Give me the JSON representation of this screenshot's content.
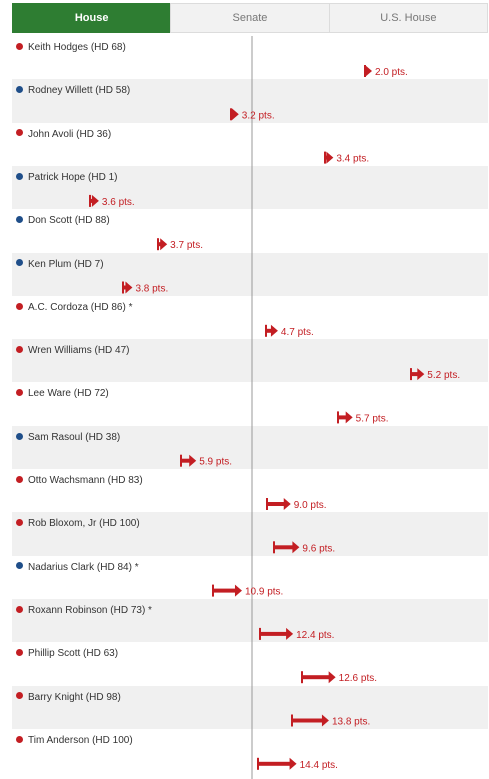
{
  "tabs": [
    {
      "label": "House",
      "active": true
    },
    {
      "label": "Senate",
      "active": false
    },
    {
      "label": "U.S. House",
      "active": false
    }
  ],
  "colors": {
    "republican": "#c31e23",
    "democrat": "#1f4e89",
    "arrow": "#c31e23",
    "tab_active": "#2e7d32"
  },
  "chart_data": {
    "type": "arrow",
    "shift_direction": "right",
    "unit": "pts.",
    "rows": [
      {
        "name": "Keith Hodges (HD 68)",
        "party": "R",
        "shift": 2.0,
        "value_label": "2.0 pts."
      },
      {
        "name": "Rodney Willett (HD 58)",
        "party": "D",
        "shift": 3.2,
        "value_label": "3.2 pts."
      },
      {
        "name": "John Avoli (HD 36)",
        "party": "R",
        "shift": 3.4,
        "value_label": "3.4 pts."
      },
      {
        "name": "Patrick Hope (HD 1)",
        "party": "D",
        "shift": 3.6,
        "value_label": "3.6 pts."
      },
      {
        "name": "Don Scott (HD 88)",
        "party": "D",
        "shift": 3.7,
        "value_label": "3.7 pts."
      },
      {
        "name": "Ken Plum (HD 7)",
        "party": "D",
        "shift": 3.8,
        "value_label": "3.8 pts."
      },
      {
        "name": "A.C. Cordoza (HD 86) *",
        "party": "R",
        "shift": 4.7,
        "value_label": "4.7 pts."
      },
      {
        "name": "Wren Williams (HD 47)",
        "party": "R",
        "shift": 5.2,
        "value_label": "5.2 pts."
      },
      {
        "name": "Lee Ware (HD 72)",
        "party": "R",
        "shift": 5.7,
        "value_label": "5.7 pts."
      },
      {
        "name": "Sam Rasoul (HD 38)",
        "party": "D",
        "shift": 5.9,
        "value_label": "5.9 pts."
      },
      {
        "name": "Otto Wachsmann (HD 83)",
        "party": "R",
        "shift": 9.0,
        "value_label": "9.0 pts."
      },
      {
        "name": "Rob Bloxom, Jr (HD 100)",
        "party": "R",
        "shift": 9.6,
        "value_label": "9.6 pts."
      },
      {
        "name": "Nadarius Clark (HD 84) *",
        "party": "D",
        "shift": 10.9,
        "value_label": "10.9 pts."
      },
      {
        "name": "Roxann Robinson (HD 73) *",
        "party": "R",
        "shift": 12.4,
        "value_label": "12.4 pts."
      },
      {
        "name": "Phillip Scott (HD 63)",
        "party": "R",
        "shift": 12.6,
        "value_label": "12.6 pts."
      },
      {
        "name": "Barry Knight (HD 98)",
        "party": "R",
        "shift": 13.8,
        "value_label": "13.8 pts."
      },
      {
        "name": "Tim Anderson (HD 100)",
        "party": "R",
        "shift": 14.4,
        "value_label": "14.4 pts."
      }
    ]
  }
}
